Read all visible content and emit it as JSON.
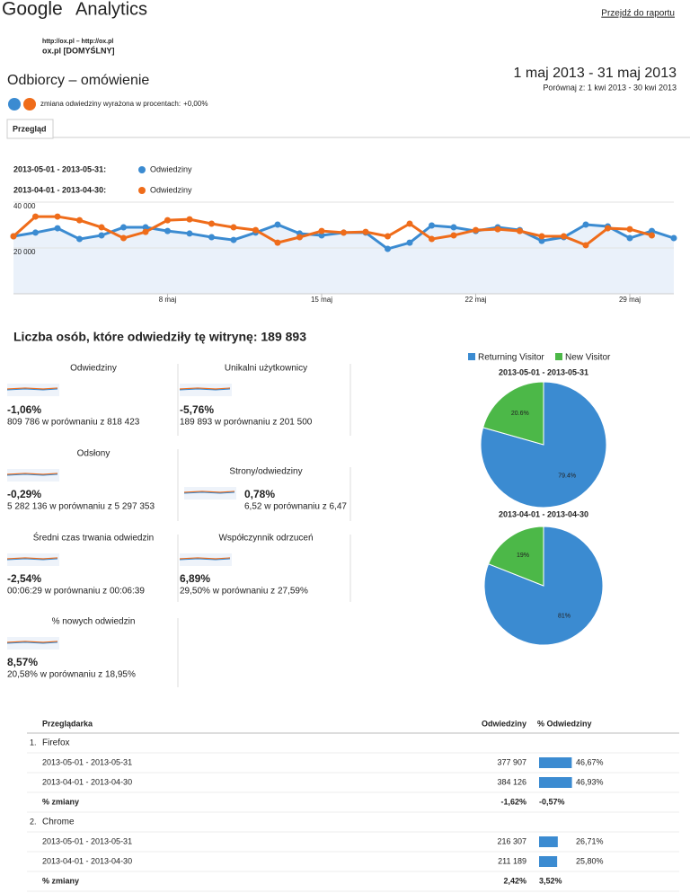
{
  "header": {
    "logo_brand": "Google",
    "logo_product": "Analytics",
    "link": "Przejdź do raportu",
    "site_url": "http://ox.pl – http://ox.pl",
    "profile": "ox.pl [DOMYŚLNY]"
  },
  "report": {
    "title": "Odbiorcy – omówienie",
    "date_range": "1 maj 2013 - 31 maj 2013",
    "compare": "Porównaj z: 1 kwi 2013 - 30 kwi 2013",
    "segment_note": "zmiana odwiedziny wyrażona w procentach:",
    "segment_change": "+0,00%",
    "tab": "Przegląd"
  },
  "chart_data": [
    {
      "type": "line",
      "categories": [
        null,
        null,
        null,
        null,
        null,
        null,
        null,
        "8 maj",
        null,
        null,
        null,
        null,
        null,
        null,
        "15 maj",
        null,
        null,
        null,
        null,
        null,
        null,
        "22 maj",
        null,
        null,
        null,
        null,
        null,
        null,
        "29 maj",
        null,
        null
      ],
      "series": [
        {
          "name": "Odwiedziny",
          "period": "2013-05-01 - 2013-05-31:",
          "color": "#3b8bd1",
          "area": true,
          "values": [
            25100,
            26700,
            28600,
            23900,
            25500,
            29000,
            29000,
            27400,
            26300,
            24700,
            23500,
            26700,
            30200,
            26300,
            25500,
            26700,
            26700,
            19600,
            22300,
            29800,
            29000,
            27400,
            29000,
            27800,
            23100,
            24700,
            30200,
            29400,
            24300,
            27400,
            24300
          ]
        },
        {
          "name": "Odwiedziny",
          "period": "2013-04-01 - 2013-04-30:",
          "color": "#ef6c1a",
          "values": [
            25100,
            33700,
            33700,
            32100,
            29000,
            24300,
            27000,
            32100,
            32500,
            30600,
            29000,
            27800,
            22300,
            24700,
            27400,
            26700,
            27000,
            25100,
            30600,
            23900,
            25500,
            27800,
            28200,
            27400,
            25100,
            25100,
            21200,
            28600,
            28200,
            25500,
            null
          ]
        }
      ],
      "ylim": [
        0,
        40000
      ],
      "yticks": [
        {
          "value": 20000,
          "label": "20 000"
        },
        {
          "value": 40000,
          "label": "40 000"
        }
      ],
      "grid": true
    },
    {
      "type": "pie",
      "title": "2013-05-01 - 2013-05-31",
      "categories": [
        "Returning Visitor",
        "New Visitor"
      ],
      "values": [
        79.4,
        20.6
      ],
      "value_labels": [
        "79.4%",
        "20.6%"
      ],
      "colors": [
        "#3b8bd1",
        "#4cb848"
      ]
    },
    {
      "type": "pie",
      "title": "2013-04-01 - 2013-04-30",
      "values": [
        81,
        19
      ],
      "value_labels": [
        "81%",
        "19%"
      ],
      "colors": [
        "#3b8bd1",
        "#4cb848"
      ]
    }
  ],
  "summary": {
    "title": "Liczba osób, które odwiedziły tę witrynę: 189 893"
  },
  "metrics": [
    {
      "name": "Odwiedziny",
      "change": "-1,06%",
      "color": "#a31c1c",
      "comparison": "809 786 w porównaniu z 818 423"
    },
    {
      "name": "Unikalni użytkownicy",
      "change": "-5,76%",
      "color": "#a31c1c",
      "comparison": "189 893 w porównaniu z 201 500"
    },
    {
      "name": "Odsłony",
      "change": "-0,29%",
      "color": "#a31c1c",
      "comparison": "5 282 136 w porównaniu z 5 297 353"
    },
    {
      "name": "Strony/odwiedziny",
      "change": "0,78%",
      "color": "#3d9a32",
      "comparison": "6,52 w porównaniu z 6,47"
    },
    {
      "name": "Średni czas trwania odwiedzin",
      "change": "-2,54%",
      "color": "#a31c1c",
      "comparison": "00:06:29 w porównaniu z 00:06:39"
    },
    {
      "name": "Współczynnik odrzuceń",
      "change": "6,89%",
      "color": "#a31c1c",
      "comparison": "29,50% w porównaniu z 27,59%"
    },
    {
      "name": "% nowych odwiedzin",
      "change": "8,57%",
      "color": "#3d9a32",
      "comparison": "20,58% w porównaniu z 18,95%"
    }
  ],
  "table": {
    "headers": [
      "Przeglądarka",
      "Odwiedziny",
      "% Odwiedziny"
    ],
    "rows": [
      {
        "rank": "1.",
        "browser": "Firefox",
        "periods": [
          {
            "label": "2013-05-01 - 2013-05-31",
            "visits": "377 907",
            "percent": 46.67,
            "percent_label": "46,67%"
          },
          {
            "label": "2013-04-01 - 2013-04-30",
            "visits": "384 126",
            "percent": 46.93,
            "percent_label": "46,93%"
          }
        ],
        "change": {
          "label": "% zmiany",
          "visits": "-1,62%",
          "percent": "-0,57%",
          "color": "#a31c1c"
        }
      },
      {
        "rank": "2.",
        "browser": "Chrome",
        "periods": [
          {
            "label": "2013-05-01 - 2013-05-31",
            "visits": "216 307",
            "percent": 26.71,
            "percent_label": "26,71%"
          },
          {
            "label": "2013-04-01 - 2013-04-30",
            "visits": "211 189",
            "percent": 25.8,
            "percent_label": "25,80%"
          }
        ],
        "change": {
          "label": "% zmiany",
          "visits": "2,42%",
          "percent": "3,52%",
          "color": "#3d9a32"
        }
      }
    ]
  }
}
